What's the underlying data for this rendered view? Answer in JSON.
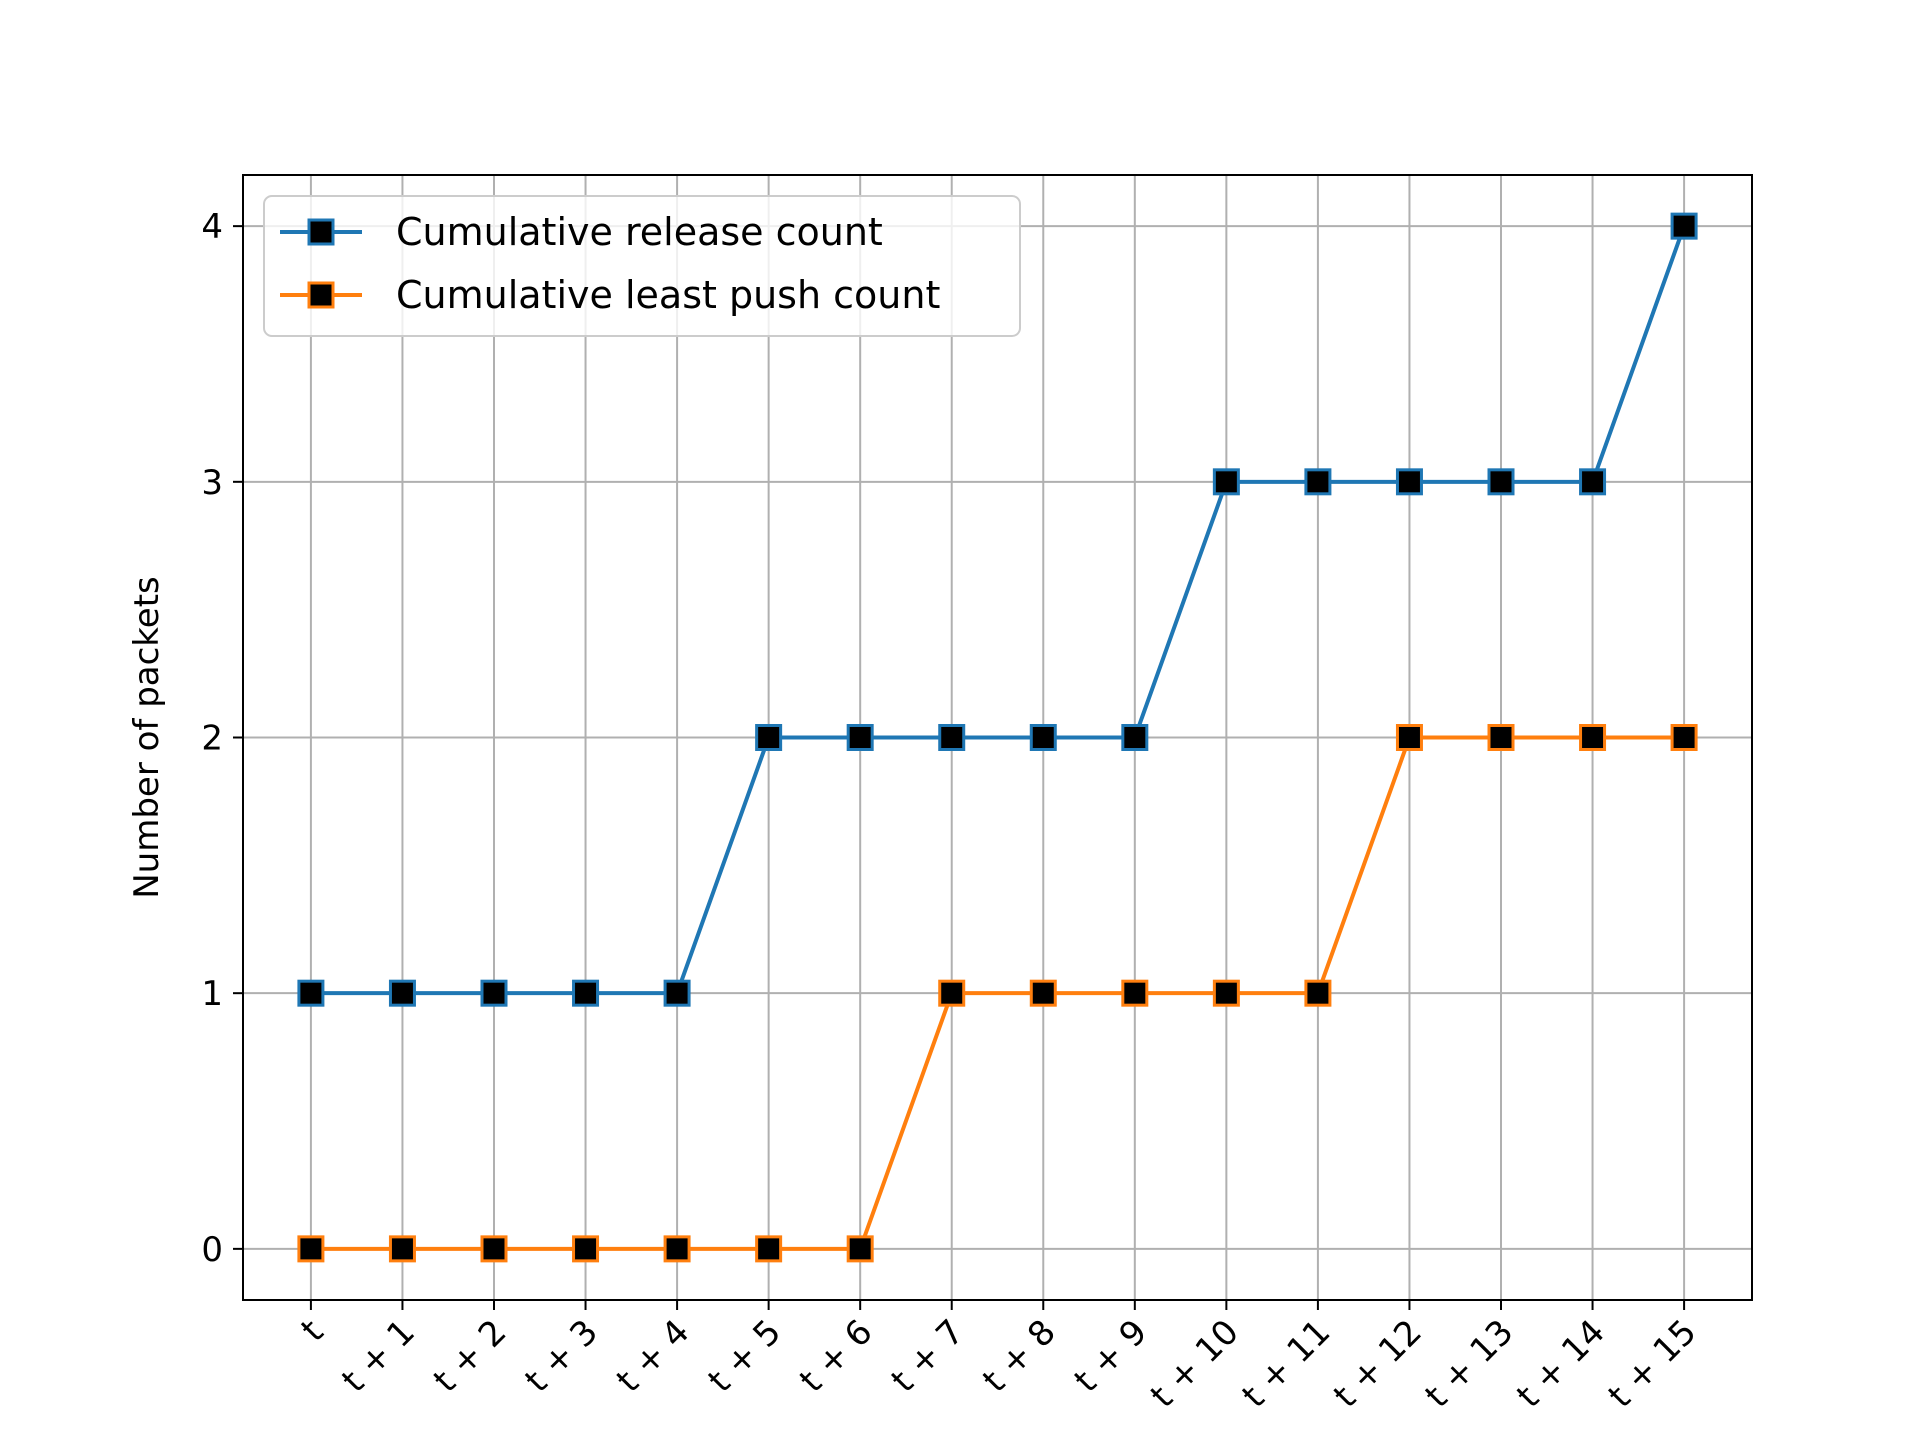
{
  "chart_data": {
    "type": "line",
    "categories": [
      "t",
      "t + 1",
      "t + 2",
      "t + 3",
      "t + 4",
      "t + 5",
      "t + 6",
      "t + 7",
      "t + 8",
      "t + 9",
      "t + 10",
      "t + 11",
      "t + 12",
      "t + 13",
      "t + 14",
      "t + 15"
    ],
    "series": [
      {
        "name": "Cumulative release count",
        "color": "#1f77b4",
        "values": [
          1,
          1,
          1,
          1,
          1,
          2,
          2,
          2,
          2,
          2,
          3,
          3,
          3,
          3,
          3,
          4
        ]
      },
      {
        "name": "Cumulative least push count",
        "color": "#ff7f0e",
        "values": [
          0,
          0,
          0,
          0,
          0,
          0,
          0,
          1,
          1,
          1,
          1,
          1,
          2,
          2,
          2,
          2
        ]
      }
    ],
    "marker": "square",
    "marker_face_color": "#000000",
    "title": "",
    "xlabel": "",
    "ylabel": "Number of packets",
    "ylim": [
      -0.2,
      4.2
    ],
    "yticks": [
      0,
      1,
      2,
      3,
      4
    ],
    "grid": true,
    "legend_position": "top-left"
  }
}
